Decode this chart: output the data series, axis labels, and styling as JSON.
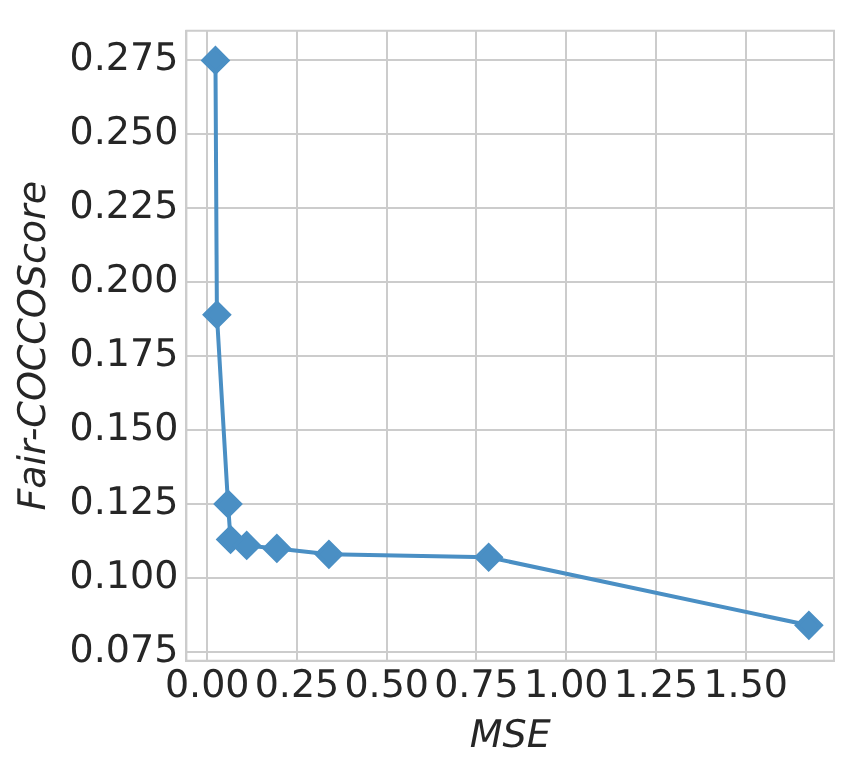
{
  "chart_data": {
    "type": "line",
    "xlabel": "MSE",
    "ylabel": "Fair-COCCOScore",
    "x": [
      0.023,
      0.027,
      0.058,
      0.065,
      0.11,
      0.194,
      0.339,
      0.784,
      1.676
    ],
    "values": [
      0.275,
      0.189,
      0.125,
      0.113,
      0.111,
      0.11,
      0.108,
      0.107,
      0.084
    ],
    "color": "#4a8fc4",
    "marker": "diamond",
    "line_style": "solid",
    "xlim": [
      -0.058,
      1.746
    ],
    "xticks": [
      {
        "value": 0,
        "label": "0.00"
      },
      {
        "value": 0.25,
        "label": "0.25"
      },
      {
        "value": 0.5,
        "label": "0.50"
      },
      {
        "value": 0.75,
        "label": "0.75"
      },
      {
        "value": 1,
        "label": "1.00"
      },
      {
        "value": 1.25,
        "label": "1.25"
      },
      {
        "value": 1.5,
        "label": "1.50"
      }
    ],
    "ylim": [
      0.072,
      0.285
    ],
    "yticks": [
      {
        "value": 0.075,
        "label": "0.075"
      },
      {
        "value": 0.1,
        "label": "0.100"
      },
      {
        "value": 0.125,
        "label": "0.125"
      },
      {
        "value": 0.15,
        "label": "0.150"
      },
      {
        "value": 0.175,
        "label": "0.175"
      },
      {
        "value": 0.2,
        "label": "0.200"
      },
      {
        "value": 0.225,
        "label": "0.225"
      },
      {
        "value": 0.25,
        "label": "0.250"
      },
      {
        "value": 0.275,
        "label": "0.275"
      }
    ],
    "grid": true,
    "legend": false
  }
}
